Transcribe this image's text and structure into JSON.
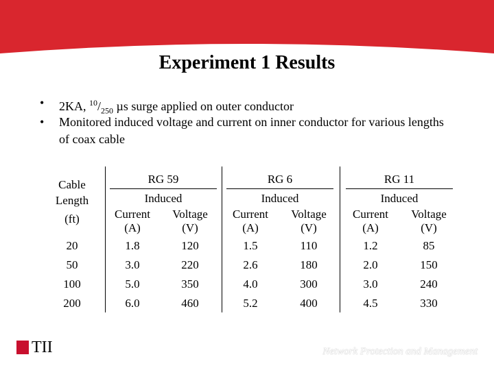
{
  "title": "Experiment 1 Results",
  "bullets": [
    {
      "parts": [
        "2KA, ",
        "10",
        "/",
        "250",
        " µs surge applied on outer conductor"
      ]
    },
    {
      "text": "Monitored induced voltage and current on inner conductor for various lengths of coax cable"
    }
  ],
  "table": {
    "length_header": [
      "Cable",
      "Length",
      "(ft)"
    ],
    "groups": [
      {
        "name": "RG 59",
        "sub": "Induced",
        "columns": [
          [
            "Current",
            "(A)"
          ],
          [
            "Voltage",
            "(V)"
          ]
        ]
      },
      {
        "name": "RG 6",
        "sub": "Induced",
        "columns": [
          [
            "Current",
            "(A)"
          ],
          [
            "Voltage",
            "(V)"
          ]
        ]
      },
      {
        "name": "RG 11",
        "sub": "Induced",
        "columns": [
          [
            "Current",
            "(A)"
          ],
          [
            "Voltage",
            "(V)"
          ]
        ]
      }
    ],
    "rows": [
      [
        "20",
        "1.8",
        "120",
        "1.5",
        "110",
        "1.2",
        "85"
      ],
      [
        "50",
        "3.0",
        "220",
        "2.6",
        "180",
        "2.0",
        "150"
      ],
      [
        "100",
        "5.0",
        "350",
        "4.0",
        "300",
        "3.0",
        "240"
      ],
      [
        "200",
        "6.0",
        "460",
        "5.2",
        "400",
        "4.5",
        "330"
      ]
    ]
  },
  "logo": "TII",
  "footer": "Network Protection and Management"
}
